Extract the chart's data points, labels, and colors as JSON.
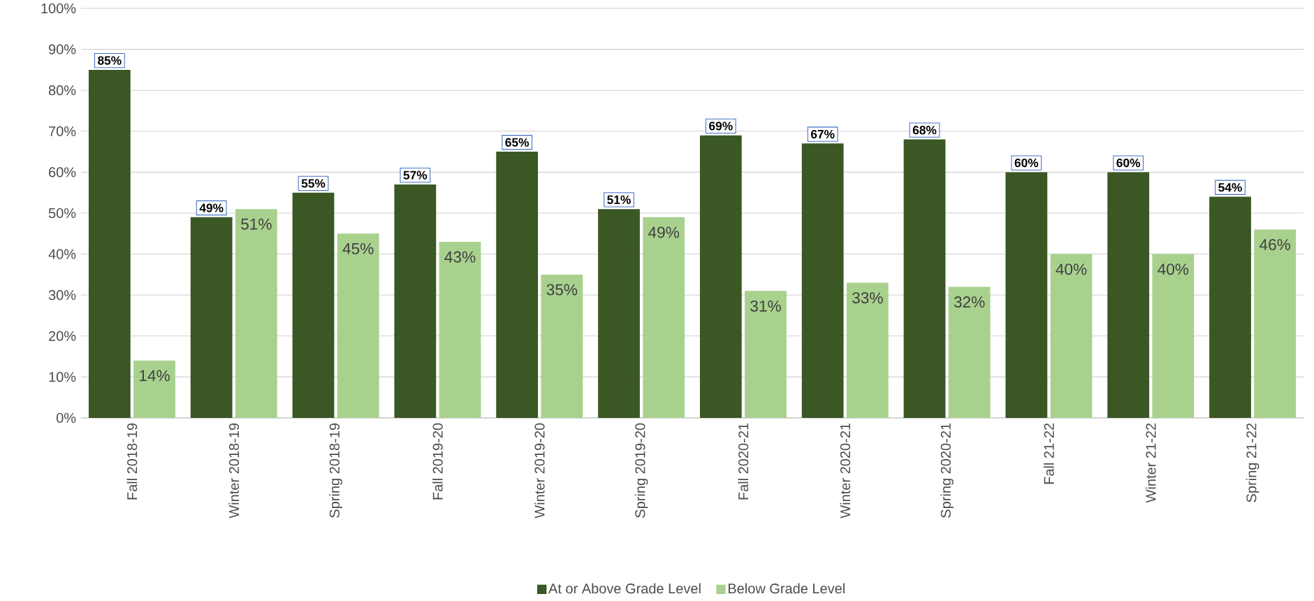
{
  "chart_data": {
    "type": "bar",
    "categories": [
      "Fall 2018-19",
      "Winter 2018-19",
      "Spring 2018-19",
      "Fall 2019-20",
      "Winter 2019-20",
      "Spring 2019-20",
      "Fall 2020-21",
      "Winter 2020-21",
      "Spring 2020-21",
      "Fall 21-22",
      "Winter 21-22",
      "Spring 21-22"
    ],
    "series": [
      {
        "name": "At or Above Grade Level",
        "color": "#3a5724",
        "values": [
          85,
          49,
          55,
          57,
          65,
          51,
          69,
          67,
          68,
          60,
          60,
          54
        ],
        "value_labels": [
          "85%",
          "49%",
          "55%",
          "57%",
          "65%",
          "51%",
          "69%",
          "67%",
          "68%",
          "60%",
          "60%",
          "54%"
        ]
      },
      {
        "name": "Below Grade Level",
        "color": "#a9d18e",
        "values": [
          14,
          51,
          45,
          43,
          35,
          49,
          31,
          33,
          32,
          40,
          40,
          46
        ],
        "value_labels": [
          "14%",
          "51%",
          "45%",
          "43%",
          "35%",
          "49%",
          "31%",
          "33%",
          "32%",
          "40%",
          "40%",
          "46%"
        ]
      }
    ],
    "ylim": [
      0,
      100
    ],
    "yticks": [
      {
        "value": 0,
        "label": "0%"
      },
      {
        "value": 10,
        "label": "10%"
      },
      {
        "value": 20,
        "label": "20%"
      },
      {
        "value": 30,
        "label": "30%"
      },
      {
        "value": 40,
        "label": "40%"
      },
      {
        "value": 50,
        "label": "50%"
      },
      {
        "value": 60,
        "label": "60%"
      },
      {
        "value": 70,
        "label": "70%"
      },
      {
        "value": 80,
        "label": "80%"
      },
      {
        "value": 90,
        "label": "90%"
      },
      {
        "value": 100,
        "label": "100%"
      }
    ],
    "grid": "y",
    "legend": "bottom"
  }
}
